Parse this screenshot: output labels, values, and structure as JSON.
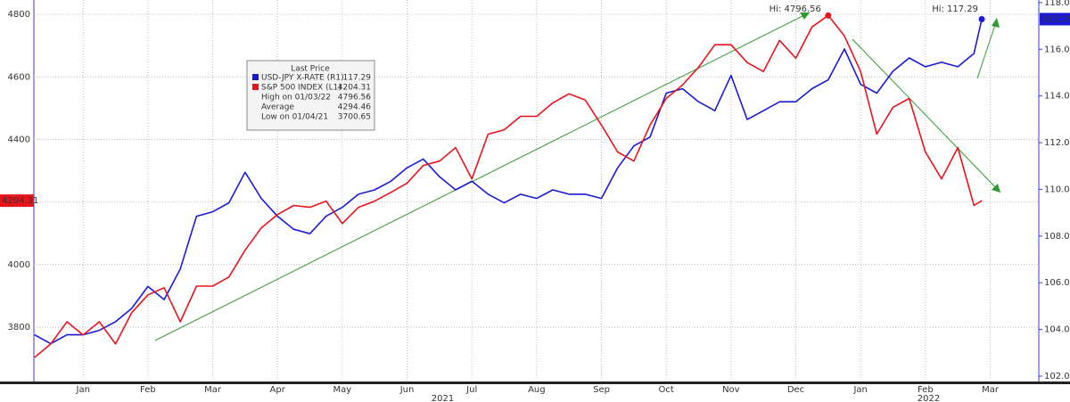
{
  "chart_data": {
    "type": "line",
    "legend_title": "Last Price",
    "series": [
      {
        "name": "USD-JPY X-RATE  (R1)",
        "color": "#1a1ad6",
        "axis": "y2",
        "values": [
          103.77,
          103.39,
          103.77,
          103.77,
          103.96,
          104.33,
          104.9,
          105.84,
          105.28,
          106.59,
          108.85,
          109.04,
          109.42,
          110.73,
          109.61,
          108.85,
          108.29,
          108.1,
          108.85,
          109.23,
          109.79,
          109.98,
          110.35,
          110.92,
          111.3,
          110.54,
          109.98,
          110.35,
          109.79,
          109.42,
          109.79,
          109.61,
          109.98,
          109.79,
          109.79,
          109.61,
          110.92,
          111.86,
          112.24,
          114.12,
          114.31,
          113.75,
          113.37,
          114.88,
          112.99,
          113.37,
          113.75,
          113.75,
          114.31,
          114.69,
          116.01,
          114.5,
          114.12,
          115.06,
          115.63,
          115.25,
          115.44,
          115.25,
          115.82,
          117.29
        ]
      },
      {
        "name": "S&P 500 INDEX  (L1)",
        "color": "#e8141b",
        "values": [
          3703,
          3746,
          3817,
          3775,
          3817,
          3746,
          3846,
          3903,
          3926,
          3817,
          3931,
          3931,
          3960,
          4046,
          4117,
          4160,
          4189,
          4183,
          4203,
          4131,
          4183,
          4203,
          4231,
          4260,
          4317,
          4331,
          4374,
          4274,
          4417,
          4431,
          4474,
          4474,
          4517,
          4546,
          4526,
          4446,
          4360,
          4331,
          4446,
          4531,
          4574,
          4631,
          4703,
          4703,
          4646,
          4617,
          4717,
          4660,
          4760,
          4796.56,
          4731,
          4617,
          4417,
          4503,
          4531,
          4360,
          4274,
          4374,
          4189,
          4204.31
        ]
      }
    ],
    "x": [
      -0.25,
      0,
      0.25,
      0.5,
      0.75,
      1,
      1.25,
      1.5,
      1.75,
      2,
      2.25,
      2.5,
      2.75,
      3,
      3.25,
      3.5,
      3.75,
      4,
      4.25,
      4.5,
      4.75,
      5,
      5.25,
      5.5,
      5.75,
      6,
      6.25,
      6.5,
      6.75,
      7,
      7.25,
      7.5,
      7.75,
      8,
      8.25,
      8.5,
      8.75,
      9,
      9.25,
      9.5,
      9.75,
      10,
      10.25,
      10.5,
      10.75,
      11,
      11.25,
      11.5,
      11.75,
      12,
      12.25,
      12.5,
      12.75,
      13,
      13.25,
      13.5,
      13.75,
      14,
      14.25,
      14.37
    ],
    "legend_stats": [
      {
        "label": "High on 01/03/22",
        "value": "4796.56"
      },
      {
        "label": "Average",
        "value": "4294.46"
      },
      {
        "label": "Low on 01/04/21",
        "value": "3700.65"
      }
    ],
    "annotations": [
      "Hi: 4796.56",
      "Hi: 117.29"
    ],
    "xlim": [
      -0.26,
      15.25
    ],
    "xticks": [
      {
        "value": 0.5,
        "label": "Jan"
      },
      {
        "value": 1.5,
        "label": "Feb"
      },
      {
        "value": 2.5,
        "label": "Mar"
      },
      {
        "value": 3.5,
        "label": "Apr"
      },
      {
        "value": 4.5,
        "label": "May"
      },
      {
        "value": 5.5,
        "label": "Jun"
      },
      {
        "value": 6.5,
        "label": "Jul"
      },
      {
        "value": 7.5,
        "label": "Aug"
      },
      {
        "value": 8.5,
        "label": "Sep"
      },
      {
        "value": 9.5,
        "label": "Oct"
      },
      {
        "value": 10.5,
        "label": "Nov"
      },
      {
        "value": 11.5,
        "label": "Dec"
      },
      {
        "value": 12.5,
        "label": "Jan"
      },
      {
        "value": 13.5,
        "label": "Feb"
      },
      {
        "value": 14.5,
        "label": "Mar"
      }
    ],
    "x_group_ticks": [
      {
        "value": 6.05,
        "label": "2021"
      },
      {
        "value": 13.55,
        "label": "2022"
      }
    ],
    "ylim": [
      3626,
      4846
    ],
    "yticks": [
      3800,
      4000,
      4200,
      4400,
      4600,
      4800
    ],
    "y2lim": [
      101.77,
      118.11
    ],
    "y2ticks": [
      {
        "value": 102,
        "label": "102.00"
      },
      {
        "value": 104,
        "label": "104.00"
      },
      {
        "value": 106,
        "label": "106.00"
      },
      {
        "value": 108,
        "label": "108.00"
      },
      {
        "value": 110,
        "label": "110.00"
      },
      {
        "value": 112,
        "label": "112.00"
      },
      {
        "value": 114,
        "label": "114.00"
      },
      {
        "value": 116,
        "label": "116.00"
      },
      {
        "value": 118,
        "label": "118.00"
      }
    ],
    "grid": true
  }
}
